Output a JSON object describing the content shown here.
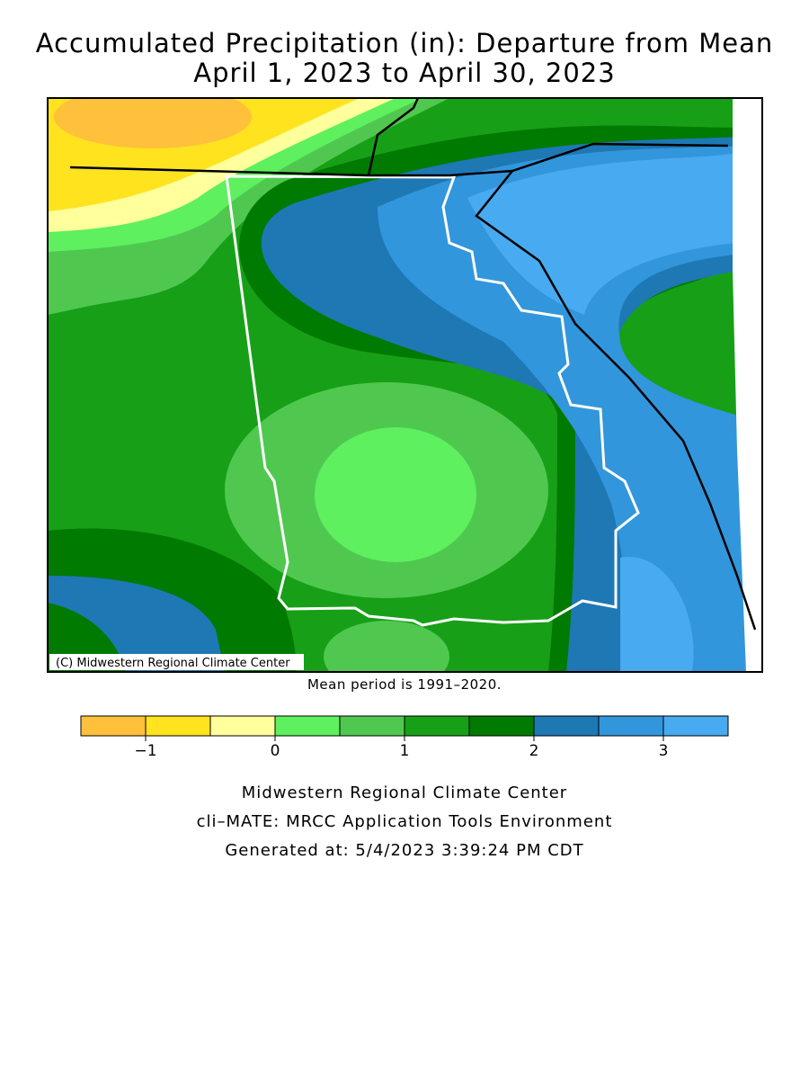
{
  "title": [
    "Accumulated Precipitation (in): Departure from Mean",
    "April 1, 2023 to April 30, 2023"
  ],
  "map": {
    "credit": "(C) Midwestern Regional Climate Center"
  },
  "note": "Mean period is 1991–2020.",
  "legend": {
    "bins": [
      -1.5,
      -1,
      -0.5,
      0,
      0.5,
      1,
      1.5,
      2,
      2.5,
      3,
      3.5
    ],
    "colors": [
      "#ffc03c",
      "#ffe31e",
      "#ffff9c",
      "#5ef05e",
      "#50c850",
      "#17a017",
      "#007a00",
      "#1e78b4",
      "#3296dc",
      "#48aaf0"
    ],
    "ticks": [
      {
        "value": -1,
        "label": "−1"
      },
      0,
      1,
      2,
      3
    ]
  },
  "footer": [
    "Midwestern Regional Climate Center",
    "cli–MATE: MRCC Application Tools Environment",
    "Generated at: 5/4/2023 3:39:24 PM CDT"
  ]
}
